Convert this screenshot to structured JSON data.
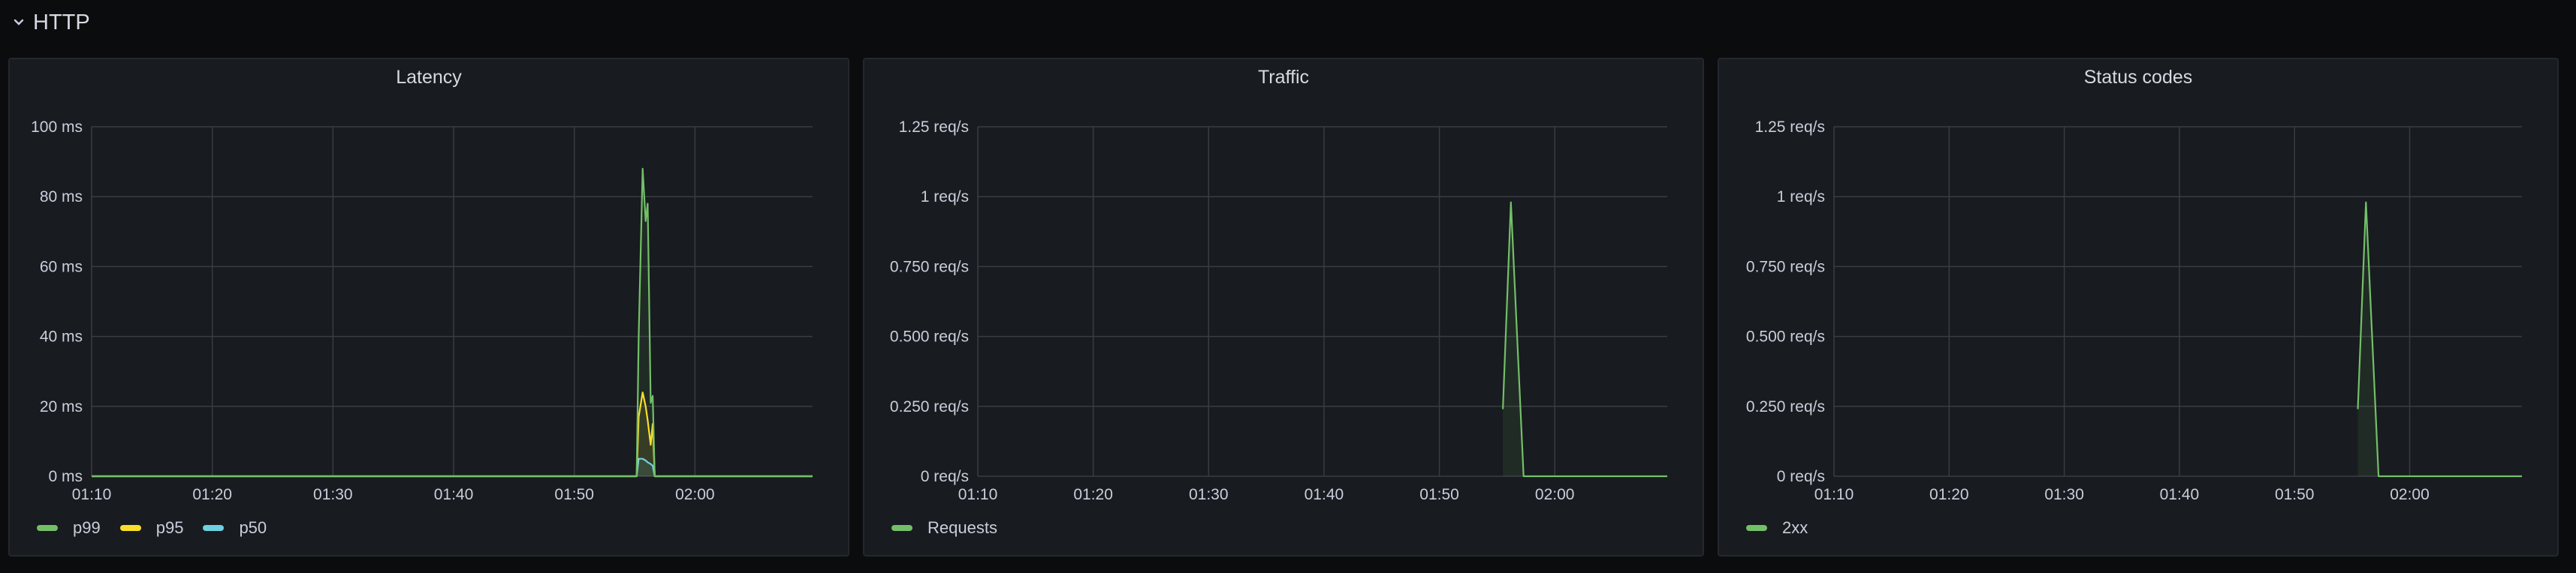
{
  "row": {
    "title": "HTTP",
    "icon": "chevron-down-icon"
  },
  "colors": {
    "background": "#0b0c0e",
    "panel": "#181b1f",
    "grid": "#3a3c42",
    "green": "#73bf69",
    "yellow": "#fade2a",
    "cyan": "#6ed0e0"
  },
  "chart_data": [
    {
      "type": "line",
      "title": "Latency",
      "x_ticks": [
        "01:10",
        "01:20",
        "01:30",
        "01:40",
        "01:50",
        "02:00"
      ],
      "xlim": [
        "01:10:00",
        "02:09:45"
      ],
      "y_ticks": [
        "0 ms",
        "20 ms",
        "40 ms",
        "60 ms",
        "80 ms",
        "100 ms"
      ],
      "y_tick_values": [
        0,
        20,
        40,
        60,
        80,
        100
      ],
      "ylim": [
        0,
        100
      ],
      "unit": "ms",
      "grid": true,
      "legend_placement": "bottom-left",
      "series": [
        {
          "name": "p99",
          "color": "#73bf69",
          "x": [
            "01:10:00",
            "01:55:10",
            "01:55:20",
            "01:55:40",
            "01:55:55",
            "01:56:05",
            "01:56:20",
            "01:56:30",
            "01:56:40",
            "02:09:45"
          ],
          "values": [
            0,
            0,
            40,
            88,
            73,
            78,
            21,
            23,
            0,
            0
          ]
        },
        {
          "name": "p95",
          "color": "#fade2a",
          "x": [
            "01:10:00",
            "01:55:10",
            "01:55:20",
            "01:55:40",
            "01:55:55",
            "01:56:05",
            "01:56:20",
            "01:56:30",
            "01:56:40",
            "02:09:45"
          ],
          "values": [
            0,
            0,
            17,
            24,
            20,
            16,
            9,
            15,
            0,
            0
          ]
        },
        {
          "name": "p50",
          "color": "#6ed0e0",
          "x": [
            "01:10:00",
            "01:55:10",
            "01:55:20",
            "01:55:40",
            "01:55:55",
            "01:56:05",
            "01:56:20",
            "01:56:30",
            "01:56:40",
            "02:09:45"
          ],
          "values": [
            0,
            0,
            5,
            5,
            4.5,
            4,
            3.5,
            3,
            0,
            0
          ]
        }
      ]
    },
    {
      "type": "line",
      "title": "Traffic",
      "x_ticks": [
        "01:10",
        "01:20",
        "01:30",
        "01:40",
        "01:50",
        "02:00"
      ],
      "xlim": [
        "01:10:00",
        "02:09:45"
      ],
      "y_ticks": [
        "0 req/s",
        "0.250 req/s",
        "0.500 req/s",
        "0.750 req/s",
        "1 req/s",
        "1.25 req/s"
      ],
      "y_tick_values": [
        0,
        0.25,
        0.5,
        0.75,
        1,
        1.25
      ],
      "ylim": [
        0,
        1.25
      ],
      "unit": "req/s",
      "grid": true,
      "legend_placement": "bottom-left",
      "series": [
        {
          "name": "Requests",
          "color": "#73bf69",
          "x": [
            "01:55:30",
            "01:56:12",
            "01:57:18",
            "02:09:45"
          ],
          "values": [
            0.24,
            0.98,
            0,
            0
          ]
        }
      ]
    },
    {
      "type": "line",
      "title": "Status codes",
      "x_ticks": [
        "01:10",
        "01:20",
        "01:30",
        "01:40",
        "01:50",
        "02:00"
      ],
      "xlim": [
        "01:10:00",
        "02:09:45"
      ],
      "y_ticks": [
        "0 req/s",
        "0.250 req/s",
        "0.500 req/s",
        "0.750 req/s",
        "1 req/s",
        "1.25 req/s"
      ],
      "y_tick_values": [
        0,
        0.25,
        0.5,
        0.75,
        1,
        1.25
      ],
      "ylim": [
        0,
        1.25
      ],
      "unit": "req/s",
      "grid": true,
      "legend_placement": "bottom-left",
      "series": [
        {
          "name": "2xx",
          "color": "#73bf69",
          "x": [
            "01:55:30",
            "01:56:12",
            "01:57:18",
            "02:09:45"
          ],
          "values": [
            0.24,
            0.98,
            0,
            0
          ]
        }
      ]
    }
  ]
}
